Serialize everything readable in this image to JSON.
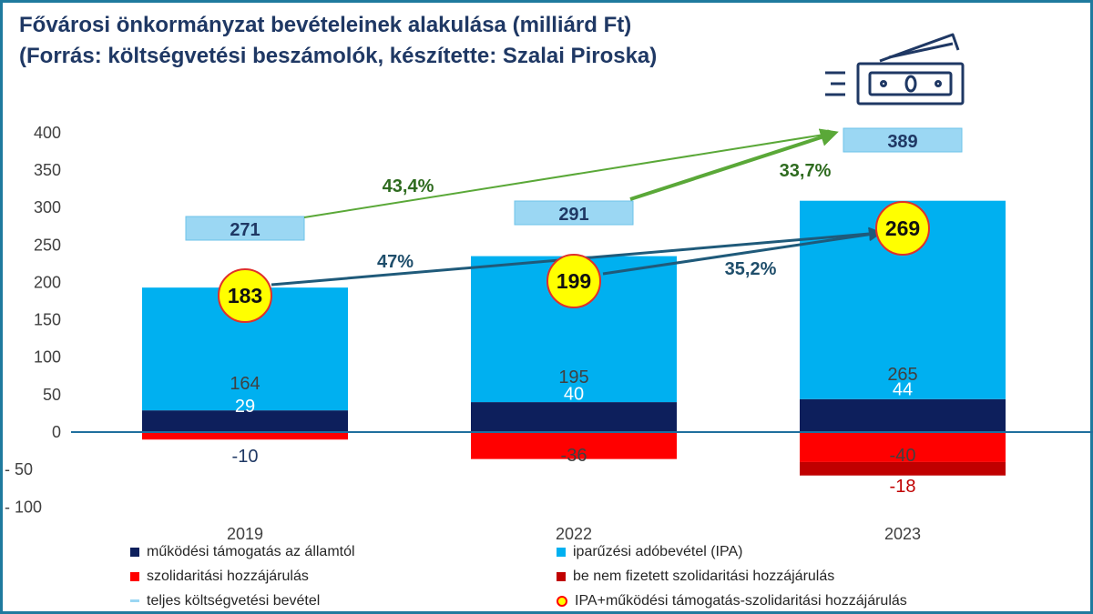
{
  "title": {
    "line1": "Fővárosi önkormányzat bevételeinek alakulása (milliárd Ft)",
    "line2": "(Forrás: költségvetési beszámolók, készítette: Szalai Piroska)"
  },
  "icon": "money-bill-icon",
  "colors": {
    "allami": "#0d1f5c",
    "ipa": "#00b0f0",
    "szolidaritasi": "#ff0000",
    "be_nem_fizetett": "#c00000",
    "teljes": "#9bd7f3",
    "highlight_circle": "#ffff00",
    "green_arrow": "#5aa838",
    "blue_arrow": "#1f5a7a"
  },
  "chart_data": {
    "type": "bar",
    "stacked": true,
    "categories": [
      "2019",
      "2022",
      "2023"
    ],
    "ylim": [
      -100,
      400
    ],
    "yticks": [
      400,
      350,
      300,
      250,
      200,
      150,
      100,
      50,
      0,
      -50,
      -100
    ],
    "ytick_labels": [
      "400",
      "350",
      "300",
      "250",
      "200",
      "150",
      "100",
      "50",
      "0",
      "-  50",
      "-  100"
    ],
    "series": [
      {
        "name": "működési támogatás az államtól",
        "values": [
          29,
          40,
          44
        ],
        "labels": [
          "29",
          "40",
          "44"
        ]
      },
      {
        "name": "iparűzési adóbevétel (IPA)",
        "values": [
          164,
          195,
          265
        ],
        "labels": [
          "164",
          "195",
          "265"
        ]
      },
      {
        "name": "szolidaritási hozzájárulás",
        "values": [
          -10,
          -36,
          -40
        ],
        "labels": [
          "-10",
          "-36",
          "-40"
        ]
      },
      {
        "name": "be nem fizetett szolidaritási hozzájárulás",
        "values": [
          0,
          0,
          -18
        ],
        "labels": [
          "",
          "",
          "-18"
        ]
      }
    ],
    "totals": {
      "name": "teljes költségvetési bevétel",
      "values": [
        271,
        291,
        389
      ],
      "labels": [
        "271",
        "291",
        "389"
      ]
    },
    "net": {
      "name": "IPA+működési támogatás-szolidaritási hozzájárulás",
      "values": [
        183,
        199,
        269
      ],
      "labels": [
        "183",
        "199",
        "269"
      ]
    },
    "annotations": {
      "total_growth": [
        "43,4%",
        "33,7%"
      ],
      "net_growth": [
        "47%",
        "35,2%"
      ]
    }
  }
}
